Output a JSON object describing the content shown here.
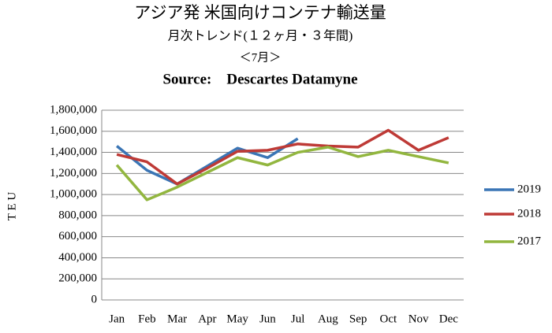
{
  "chart_data": {
    "type": "line",
    "title": "アジア発 米国向けコンテナ輸送量",
    "subtitle": "月次トレンド(１２ヶ月・３年間)",
    "period": "＜7月＞",
    "source": "Source:　Descartes Datamyne",
    "y_label": "T E U",
    "categories": [
      "Jan",
      "Feb",
      "Mar",
      "Apr",
      "May",
      "Jun",
      "Jul",
      "Aug",
      "Sep",
      "Oct",
      "Nov",
      "Dec"
    ],
    "series": [
      {
        "name": "2019",
        "color": "#3a75b5",
        "values": [
          1460000,
          1230000,
          1100000,
          1270000,
          1440000,
          1350000,
          1530000,
          null,
          null,
          null,
          null,
          null
        ]
      },
      {
        "name": "2018",
        "color": "#be3a36",
        "values": [
          1380000,
          1310000,
          1100000,
          1250000,
          1410000,
          1420000,
          1480000,
          1460000,
          1450000,
          1610000,
          1420000,
          1540000
        ]
      },
      {
        "name": "2017",
        "color": "#92b63f",
        "values": [
          1280000,
          950000,
          1070000,
          1210000,
          1350000,
          1280000,
          1400000,
          1450000,
          1360000,
          1420000,
          1360000,
          1300000
        ]
      }
    ],
    "ylim": [
      0,
      1800000
    ],
    "yticks": [
      0,
      {
        "value": 200000,
        "label": "200,000"
      },
      {
        "value": 400000,
        "label": "400,000"
      },
      {
        "value": 600000,
        "label": "600,000"
      },
      {
        "value": 800000,
        "label": "800,000"
      },
      {
        "value": 1000000,
        "label": "1,000,000"
      },
      {
        "value": 1200000,
        "label": "1,200,000"
      },
      {
        "value": 1400000,
        "label": "1,400,000"
      },
      {
        "value": 1600000,
        "label": "1,600,000"
      },
      {
        "value": 1800000,
        "label": "1,800,000"
      }
    ],
    "grid": true,
    "legend": "right"
  }
}
